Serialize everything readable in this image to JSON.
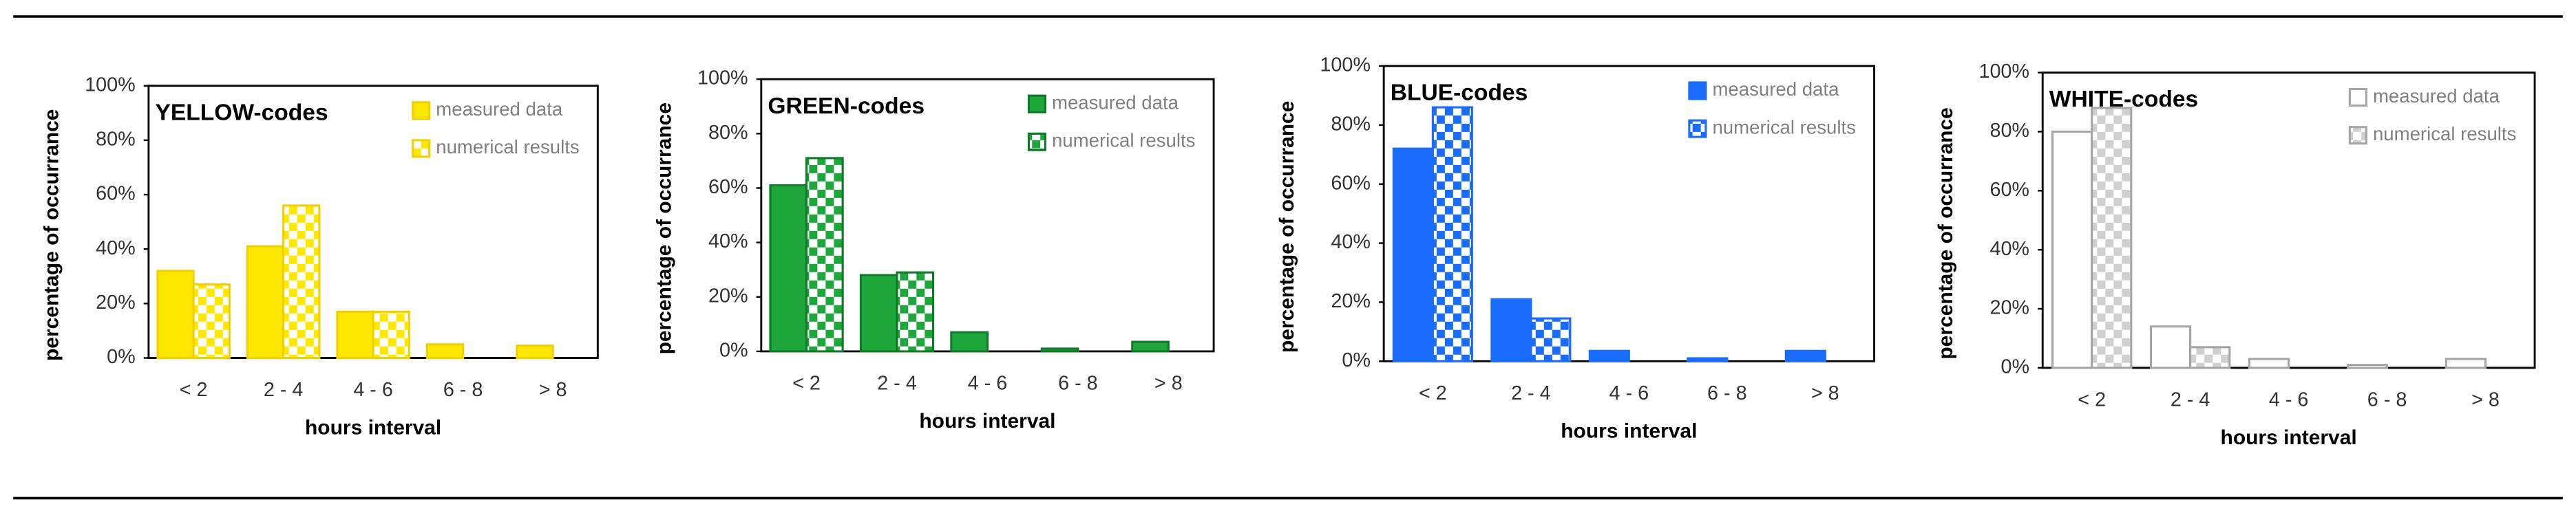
{
  "chart_data": [
    {
      "type": "bar",
      "title": "YELLOW-codes",
      "x_label": "hours interval",
      "y_label": "percentage of occurrance",
      "categories": [
        "< 2",
        "2 - 4",
        "4 - 6",
        "6 - 8",
        "> 8"
      ],
      "series": [
        {
          "name": "measured data",
          "color": "#ffe800",
          "edgecolor": "#f2d000",
          "fill_style": "solid",
          "values": [
            32,
            41,
            17,
            5,
            4.5
          ]
        },
        {
          "name": "numerical results",
          "color": "#ffe800",
          "edgecolor": "#f2d000",
          "fill_style": "checker",
          "values": [
            27,
            56,
            17,
            0,
            0
          ]
        }
      ],
      "ylim": [
        0,
        100
      ],
      "yticks": [
        {
          "value": 0,
          "label": "0%"
        },
        {
          "value": 20,
          "label": "20%"
        },
        {
          "value": 40,
          "label": "40%"
        },
        {
          "value": 60,
          "label": "60%"
        },
        {
          "value": 80,
          "label": "80%"
        },
        {
          "value": 100,
          "label": "100%"
        }
      ]
    },
    {
      "type": "bar",
      "title": "GREEN-codes",
      "x_label": "hours interval",
      "y_label": "percentage of occurrance",
      "categories": [
        "< 2",
        "2 - 4",
        "4 - 6",
        "6 - 8",
        "> 8"
      ],
      "series": [
        {
          "name": "measured data",
          "color": "#1ea83c",
          "edgecolor": "#0f7a28",
          "fill_style": "solid",
          "values": [
            61,
            28,
            7,
            1,
            3.5
          ]
        },
        {
          "name": "numerical results",
          "color": "#1ea83c",
          "edgecolor": "#0f7a28",
          "fill_style": "checker",
          "values": [
            71,
            29,
            0,
            0,
            0
          ]
        }
      ],
      "ylim": [
        0,
        100
      ],
      "yticks": [
        {
          "value": 0,
          "label": "0%"
        },
        {
          "value": 20,
          "label": "20%"
        },
        {
          "value": 40,
          "label": "40%"
        },
        {
          "value": 60,
          "label": "60%"
        },
        {
          "value": 80,
          "label": "80%"
        },
        {
          "value": 100,
          "label": "100%"
        }
      ]
    },
    {
      "type": "bar",
      "title": "BLUE-codes",
      "x_label": "hours interval",
      "y_label": "percentage of occurrance",
      "categories": [
        "< 2",
        "2 - 4",
        "4 - 6",
        "6 - 8",
        "> 8"
      ],
      "series": [
        {
          "name": "measured data",
          "color": "#1a6cff",
          "edgecolor": "#1a6cff",
          "fill_style": "solid",
          "values": [
            72,
            21,
            3.5,
            1,
            3.5
          ]
        },
        {
          "name": "numerical results",
          "color": "#1a6cff",
          "edgecolor": "#1a6cff",
          "fill_style": "checker",
          "values": [
            86,
            14.5,
            0,
            0,
            0
          ]
        }
      ],
      "ylim": [
        0,
        100
      ],
      "yticks": [
        {
          "value": 0,
          "label": "0%"
        },
        {
          "value": 20,
          "label": "20%"
        },
        {
          "value": 40,
          "label": "40%"
        },
        {
          "value": 60,
          "label": "60%"
        },
        {
          "value": 80,
          "label": "80%"
        },
        {
          "value": 100,
          "label": "100%"
        }
      ]
    },
    {
      "type": "bar",
      "title": "WHITE-codes",
      "x_label": "hours interval",
      "y_label": "percentage of occurrance",
      "categories": [
        "< 2",
        "2 - 4",
        "4 - 6",
        "6 - 8",
        "> 8"
      ],
      "series": [
        {
          "name": "measured data",
          "color": "#ffffff",
          "edgecolor": "#a6a6a6",
          "fill_style": "solid",
          "values": [
            80,
            14,
            3,
            1,
            3
          ]
        },
        {
          "name": "numerical results",
          "color": "#d0d0d0",
          "edgecolor": "#a6a6a6",
          "fill_style": "checker",
          "values": [
            88,
            7,
            0,
            0,
            0
          ]
        }
      ],
      "ylim": [
        0,
        100
      ],
      "yticks": [
        {
          "value": 0,
          "label": "0%"
        },
        {
          "value": 20,
          "label": "20%"
        },
        {
          "value": 40,
          "label": "40%"
        },
        {
          "value": 60,
          "label": "60%"
        },
        {
          "value": 80,
          "label": "80%"
        },
        {
          "value": 100,
          "label": "100%"
        }
      ]
    }
  ]
}
